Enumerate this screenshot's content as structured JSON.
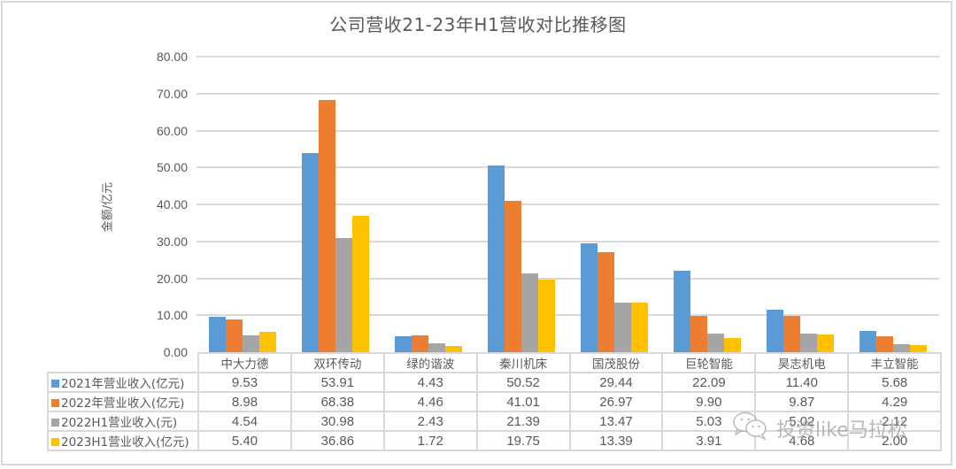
{
  "chart_data": {
    "type": "bar",
    "title": "公司营收21-23年H1营收对比推移图",
    "xlabel": "",
    "ylabel": "金额/亿元",
    "ylim": [
      0,
      80
    ],
    "yticks": [
      "80.00",
      "70.00",
      "60.00",
      "50.00",
      "40.00",
      "30.00",
      "20.00",
      "10.00",
      "0.00"
    ],
    "grid": true,
    "legend_position": "data-table",
    "categories": [
      "中大力德",
      "双环传动",
      "绿的谐波",
      "秦川机床",
      "国茂股份",
      "巨轮智能",
      "昊志机电",
      "丰立智能"
    ],
    "series": [
      {
        "name": "2021年营业收入(亿元)",
        "color": "#5b9bd5",
        "values": [
          9.53,
          53.91,
          4.43,
          50.52,
          29.44,
          22.09,
          11.4,
          5.68
        ],
        "display": [
          "9.53",
          "53.91",
          "4.43",
          "50.52",
          "29.44",
          "22.09",
          "11.40",
          "5.68"
        ]
      },
      {
        "name": "2022年营业收入(亿元)",
        "color": "#ed7d31",
        "values": [
          8.98,
          68.38,
          4.46,
          41.01,
          26.97,
          9.9,
          9.87,
          4.29
        ],
        "display": [
          "8.98",
          "68.38",
          "4.46",
          "41.01",
          "26.97",
          "9.90",
          "9.87",
          "4.29"
        ]
      },
      {
        "name": "2022H1营业收入(元)",
        "color": "#a5a5a5",
        "values": [
          4.54,
          30.98,
          2.43,
          21.39,
          13.47,
          5.03,
          5.02,
          2.12
        ],
        "display": [
          "4.54",
          "30.98",
          "2.43",
          "21.39",
          "13.47",
          "5.03",
          "5.02",
          "2.12"
        ]
      },
      {
        "name": "2023H1营业收入(亿元)",
        "color": "#ffc000",
        "values": [
          5.4,
          36.86,
          1.72,
          19.75,
          13.39,
          3.91,
          4.68,
          2.0
        ],
        "display": [
          "5.40",
          "36.86",
          "1.72",
          "19.75",
          "13.39",
          "3.91",
          "4.68",
          "2.00"
        ]
      }
    ]
  },
  "watermark": {
    "icon": "wechat-icon",
    "text": "投资like马拉松"
  }
}
